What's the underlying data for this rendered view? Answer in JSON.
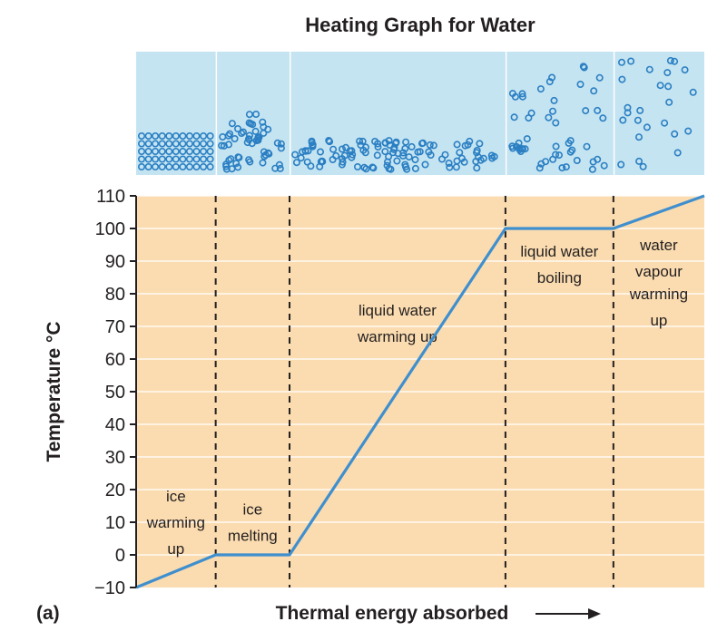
{
  "chart_data": {
    "type": "line",
    "title": "Heating Graph for Water",
    "panel_label": "(a)",
    "xlabel": "Thermal energy absorbed",
    "xlabel_arrow": "→",
    "ylabel": "Temperature °C",
    "ylim": [
      -10,
      110
    ],
    "yticks": [
      -10,
      0,
      10,
      20,
      30,
      40,
      50,
      60,
      70,
      80,
      90,
      100,
      110
    ],
    "ytick_labels": [
      "−10",
      "0",
      "10",
      "20",
      "30",
      "40",
      "50",
      "60",
      "70",
      "80",
      "90",
      "100",
      "110"
    ],
    "grid": true,
    "xlim": [
      0,
      100
    ],
    "series": [
      {
        "x": [
          0,
          14,
          27,
          65,
          84,
          100
        ],
        "y": [
          -10,
          0,
          0,
          100,
          100,
          110
        ]
      }
    ],
    "phase_boundaries_x": [
      14,
      27,
      65,
      84
    ],
    "regions": [
      {
        "x0": 0,
        "x1": 14,
        "lines": [
          "ice",
          "warming",
          "up"
        ],
        "label_y": [
          18,
          10,
          2
        ],
        "particles": "ice"
      },
      {
        "x0": 14,
        "x1": 27,
        "lines": [
          "ice",
          "melting"
        ],
        "label_y": [
          14,
          6
        ],
        "particles": "melting"
      },
      {
        "x0": 27,
        "x1": 65,
        "lines": [
          "liquid water",
          "warming up"
        ],
        "label_y": [
          75,
          67
        ],
        "particles": "liquid"
      },
      {
        "x0": 65,
        "x1": 84,
        "lines": [
          "liquid water",
          "boiling"
        ],
        "label_y": [
          93,
          85
        ],
        "particles": "boiling"
      },
      {
        "x0": 84,
        "x1": 100,
        "lines": [
          "water",
          "vapour",
          "warming",
          "up"
        ],
        "label_y": [
          95,
          87,
          80,
          72
        ],
        "particles": "gas"
      }
    ],
    "colors": {
      "plot_background": "#fbdcb0",
      "particle_panel": "#c5e4f1",
      "line": "#3f8fcf",
      "grid": "#ffffff",
      "boundary": "#231f20",
      "particle": "#2a7fc3",
      "text": "#231f20"
    }
  }
}
